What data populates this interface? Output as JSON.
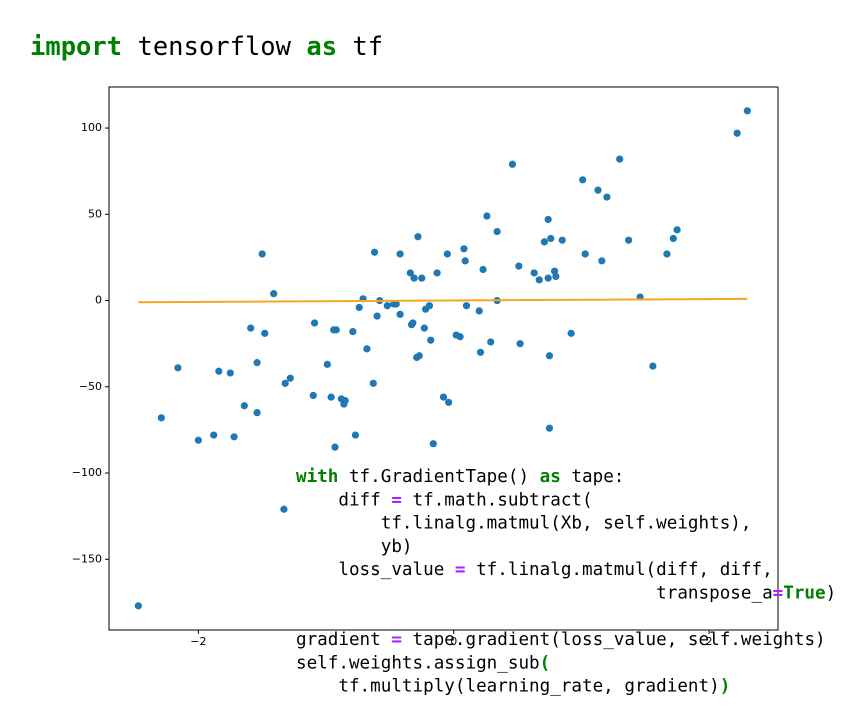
{
  "header": {
    "tokens": [
      {
        "text": "import",
        "color": "#008000"
      },
      " tensorflow ",
      {
        "text": "as",
        "color": "#008000"
      },
      " tf"
    ]
  },
  "chart_data": {
    "type": "scatter",
    "xlim": [
      -2.7,
      2.54
    ],
    "ylim": [
      -191,
      123.8
    ],
    "xticks": [
      {
        "value": -2,
        "label": "−2"
      },
      0,
      2
    ],
    "yticks": [
      {
        "value": -150,
        "label": "−150"
      },
      {
        "value": -100,
        "label": "−100"
      },
      {
        "value": -50,
        "label": "−50"
      },
      0,
      50,
      100
    ],
    "series": [
      {
        "type": "scatter",
        "color": "#1f77b4",
        "x": [
          -2.47,
          -2.29,
          -2.16,
          -2.0,
          -1.88,
          -1.84,
          -1.75,
          -1.72,
          -1.64,
          -1.59,
          -1.54,
          -1.54,
          -1.5,
          -1.48,
          -1.41,
          -1.33,
          -1.32,
          -1.28,
          -1.09,
          -1.1,
          -0.99,
          -0.96,
          -0.94,
          -0.93,
          -0.92,
          -0.88,
          -0.86,
          -0.85,
          -0.79,
          -0.77,
          -0.74,
          -0.71,
          -0.68,
          -0.63,
          -0.62,
          -0.6,
          -0.58,
          -0.52,
          -0.47,
          -0.45,
          -0.42,
          -0.42,
          -0.34,
          -0.33,
          -0.32,
          -0.31,
          -0.29,
          -0.28,
          -0.27,
          -0.25,
          -0.23,
          -0.22,
          -0.19,
          -0.18,
          -0.16,
          -0.13,
          -0.08,
          -0.04,
          -0.05,
          0.02,
          0.05,
          0.08,
          0.09,
          0.1,
          0.2,
          0.21,
          0.23,
          0.26,
          0.29,
          0.34,
          0.34,
          0.46,
          0.51,
          0.52,
          0.63,
          0.67,
          0.71,
          0.74,
          0.74,
          0.75,
          0.75,
          0.76,
          0.79,
          0.8,
          0.85,
          0.92,
          1.01,
          1.03,
          1.13,
          1.16,
          1.2,
          1.3,
          1.37,
          1.46,
          1.56,
          1.67,
          1.72,
          1.75,
          2.22,
          2.3
        ],
        "values": [
          -177,
          -68,
          -39,
          -81,
          -78,
          -41,
          -42,
          -79,
          -61,
          -16,
          -36,
          -65,
          27,
          -19,
          4,
          -121,
          -48,
          -45,
          -13,
          -55,
          -37,
          -56,
          -17,
          -85,
          -17,
          -57,
          -60,
          -58,
          -18,
          -78,
          -4,
          1,
          -28,
          -48,
          28,
          -9,
          0,
          -3,
          -2,
          -2,
          -8,
          27,
          16,
          -14,
          -13,
          13,
          -33,
          37,
          -32,
          13,
          -16,
          -5,
          -3,
          -23,
          -83,
          16,
          -56,
          -59,
          27,
          -20,
          -21,
          30,
          23,
          -3,
          -6,
          -30,
          18,
          49,
          -24,
          40,
          0,
          79,
          20,
          -25,
          16,
          12,
          34,
          13,
          47,
          -74,
          -32,
          36,
          17,
          14,
          35,
          -19,
          70,
          27,
          64,
          23,
          60,
          82,
          35,
          2,
          -38,
          27,
          36,
          41,
          97,
          110
        ]
      },
      {
        "type": "line",
        "color": "#f5a623",
        "x": [
          -2.47,
          2.3
        ],
        "values": [
          -1,
          1
        ]
      }
    ]
  },
  "code": {
    "lines": [
      [
        {
          "text": "with",
          "color": "#008000"
        },
        " tf.GradientTape() ",
        {
          "text": "as",
          "color": "#008000"
        },
        " tape:"
      ],
      [
        "    diff ",
        {
          "text": "=",
          "color": "#aa22ff"
        },
        " tf.math.subtract("
      ],
      [
        "        tf.linalg.matmul(Xb, self.weights),"
      ],
      [
        "        yb)"
      ],
      [
        "    loss_value ",
        {
          "text": "=",
          "color": "#aa22ff"
        },
        " tf.linalg.matmul(diff, diff,"
      ],
      [
        "                                  transpose_a",
        {
          "text": "=",
          "color": "#aa22ff"
        },
        {
          "text": "True",
          "color": "#008000"
        },
        ")"
      ],
      null,
      [
        "gradient ",
        {
          "text": "=",
          "color": "#aa22ff"
        },
        " tape.gradient(loss_value, self.weights)"
      ],
      [
        "self.weights.assign_sub",
        {
          "text": "(",
          "color": "#008000"
        }
      ],
      [
        "    tf.multiply(learning_rate, gradient)",
        {
          "text": ")",
          "color": "#008000"
        }
      ]
    ]
  }
}
